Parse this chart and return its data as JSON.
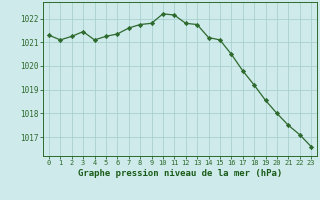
{
  "x": [
    0,
    1,
    2,
    3,
    4,
    5,
    6,
    7,
    8,
    9,
    10,
    11,
    12,
    13,
    14,
    15,
    16,
    17,
    18,
    19,
    20,
    21,
    22,
    23
  ],
  "y": [
    1021.3,
    1021.1,
    1021.25,
    1021.45,
    1021.1,
    1021.25,
    1021.35,
    1021.6,
    1021.75,
    1021.8,
    1022.2,
    1022.15,
    1021.8,
    1021.75,
    1021.2,
    1021.1,
    1020.5,
    1019.8,
    1019.2,
    1018.55,
    1018.0,
    1017.5,
    1017.1,
    1016.6
  ],
  "line_color": "#2d6a2d",
  "marker": "D",
  "marker_size": 2.2,
  "bg_color": "#ceeaea",
  "grid_color": "#a8d0d0",
  "xlabel": "Graphe pression niveau de la mer (hPa)",
  "xlabel_color": "#1a5c1a",
  "ylabel_ticks": [
    1017,
    1018,
    1019,
    1020,
    1021,
    1022
  ],
  "xlim": [
    -0.5,
    23.5
  ],
  "ylim": [
    1016.2,
    1022.7
  ],
  "tick_color": "#2d6a2d",
  "xtick_fontsize": 5.0,
  "ytick_fontsize": 5.5,
  "xlabel_fontsize": 6.5
}
